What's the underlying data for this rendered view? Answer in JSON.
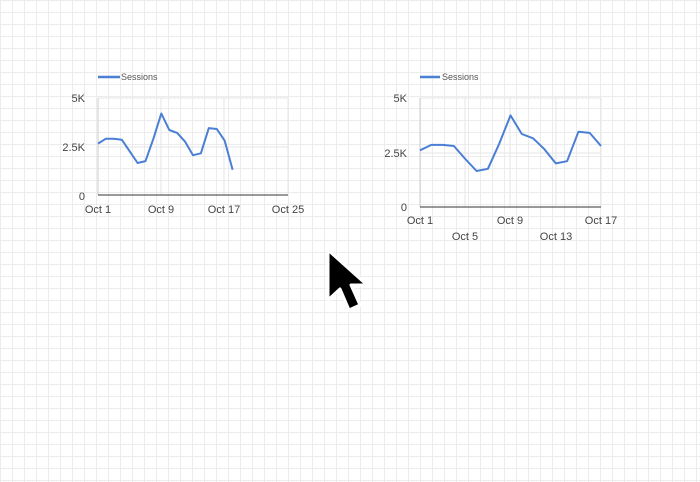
{
  "canvas": {
    "background": "#ffffff",
    "grid_color": "#ececec"
  },
  "cursor_icon": "arrow-cursor-icon",
  "charts": [
    {
      "legend": "Sessions",
      "line_color": "#4a7fd4",
      "y_ticks": [
        "5K",
        "2.5K",
        "0"
      ],
      "x_ticks": [
        "Oct 1",
        "Oct 9",
        "Oct 17",
        "Oct 25"
      ]
    },
    {
      "legend": "Sessions",
      "line_color": "#4a7fd4",
      "y_ticks": [
        "5K",
        "2.5K",
        "0"
      ],
      "x_ticks_row1": [
        "Oct 1",
        "Oct 9",
        "Oct 17"
      ],
      "x_ticks_row2": [
        "Oct 5",
        "Oct 13"
      ]
    }
  ],
  "chart_data": [
    {
      "type": "line",
      "series": [
        {
          "name": "Sessions",
          "x": [
            "Oct 1",
            "Oct 2",
            "Oct 3",
            "Oct 4",
            "Oct 5",
            "Oct 6",
            "Oct 7",
            "Oct 8",
            "Oct 9",
            "Oct 10",
            "Oct 11",
            "Oct 12",
            "Oct 13",
            "Oct 14",
            "Oct 15",
            "Oct 16",
            "Oct 17",
            "Oct 18"
          ],
          "values": [
            2650,
            2900,
            2900,
            2850,
            2250,
            1650,
            1750,
            2900,
            4200,
            3350,
            3200,
            2750,
            2050,
            2150,
            3450,
            3400,
            2800,
            1300
          ]
        }
      ],
      "x_range": [
        "Oct 1",
        "Oct 25"
      ],
      "ylim": [
        0,
        5000
      ],
      "grid": true,
      "legend": "top-left"
    },
    {
      "type": "line",
      "series": [
        {
          "name": "Sessions",
          "x": [
            "Oct 1",
            "Oct 2",
            "Oct 3",
            "Oct 4",
            "Oct 5",
            "Oct 6",
            "Oct 7",
            "Oct 8",
            "Oct 9",
            "Oct 10",
            "Oct 11",
            "Oct 12",
            "Oct 13",
            "Oct 14",
            "Oct 15",
            "Oct 16",
            "Oct 17"
          ],
          "values": [
            2600,
            2850,
            2850,
            2800,
            2200,
            1650,
            1750,
            2900,
            4200,
            3350,
            3150,
            2650,
            2000,
            2100,
            3450,
            3400,
            2800
          ]
        }
      ],
      "x_range": [
        "Oct 1",
        "Oct 17"
      ],
      "ylim": [
        0,
        5000
      ],
      "grid": true,
      "legend": "top-left"
    }
  ]
}
